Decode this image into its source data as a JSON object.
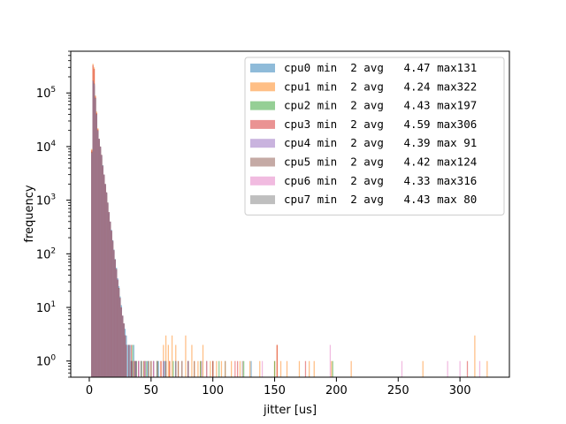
{
  "chart_data": {
    "type": "bar",
    "title": "",
    "xlabel": "jitter [us]",
    "ylabel": "frequency",
    "xlim": [
      -15,
      340
    ],
    "ylim": [
      0.5,
      600000
    ],
    "yscale": "log",
    "grid": false,
    "legend_position": "top-right",
    "xticks": [
      "0",
      "50",
      "100",
      "150",
      "200",
      "250",
      "300"
    ],
    "yticks": [
      {
        "value": 1,
        "base": "10",
        "exp": "0"
      },
      {
        "value": 10,
        "base": "10",
        "exp": "1"
      },
      {
        "value": 100,
        "base": "10",
        "exp": "2"
      },
      {
        "value": 1000,
        "base": "10",
        "exp": "3"
      },
      {
        "value": 10000,
        "base": "10",
        "exp": "4"
      },
      {
        "value": 100000,
        "base": "10",
        "exp": "5"
      }
    ],
    "series": [
      {
        "name": "cpu0 min  2 avg   4.47 max131",
        "color": "#1f77b4",
        "x": [
          2,
          3,
          4,
          5,
          6,
          7,
          8,
          9,
          10,
          11,
          12,
          13,
          14,
          15,
          16,
          17,
          18,
          19,
          20,
          21,
          22,
          23,
          24,
          25,
          26,
          27,
          28,
          29,
          30,
          31,
          32,
          33,
          34,
          35,
          36,
          37,
          38,
          40,
          42,
          44,
          47,
          52,
          56,
          61,
          70,
          80,
          95,
          110,
          131
        ],
        "y": [
          8000,
          160000,
          140000,
          80000,
          40000,
          20000,
          14000,
          10000,
          7000,
          4500,
          3000,
          2000,
          1400,
          900,
          600,
          400,
          280,
          180,
          120,
          80,
          55,
          35,
          25,
          16,
          11,
          7,
          5,
          4,
          3,
          2,
          2,
          2,
          1,
          1,
          2,
          1,
          1,
          1,
          1,
          1,
          1,
          1,
          1,
          1,
          1,
          1,
          1,
          1,
          1
        ]
      },
      {
        "name": "cpu1 min  2 avg   4.24 max322",
        "color": "#ff7f0e",
        "x": [
          2,
          3,
          4,
          5,
          6,
          7,
          8,
          9,
          10,
          11,
          12,
          13,
          14,
          15,
          16,
          17,
          18,
          19,
          20,
          21,
          22,
          23,
          24,
          25,
          26,
          27,
          28,
          29,
          30,
          32,
          34,
          36,
          40,
          44,
          48,
          52,
          55,
          58,
          60,
          62,
          64,
          65,
          67,
          70,
          72,
          75,
          78,
          80,
          83,
          85,
          88,
          90,
          92,
          95,
          98,
          100,
          103,
          107,
          110,
          115,
          118,
          122,
          130,
          138,
          150,
          152,
          155,
          160,
          170,
          178,
          182,
          196,
          212,
          270,
          312,
          322
        ],
        "y": [
          9000,
          350000,
          300000,
          90000,
          45000,
          22000,
          13000,
          9000,
          6000,
          4000,
          2800,
          1800,
          1200,
          800,
          500,
          350,
          220,
          140,
          90,
          60,
          40,
          25,
          18,
          12,
          8,
          6,
          4,
          3,
          2,
          2,
          1,
          1,
          1,
          1,
          1,
          1,
          1,
          1,
          2,
          3,
          2,
          1,
          3,
          2,
          1,
          1,
          3,
          1,
          2,
          1,
          1,
          1,
          2,
          1,
          1,
          1,
          1,
          1,
          1,
          1,
          1,
          1,
          1,
          1,
          1,
          2,
          1,
          1,
          1,
          1,
          1,
          1,
          1,
          1,
          3,
          1
        ]
      },
      {
        "name": "cpu2 min  2 avg   4.43 max197",
        "color": "#2ca02c",
        "x": [
          2,
          3,
          4,
          5,
          6,
          7,
          8,
          9,
          10,
          11,
          12,
          13,
          14,
          15,
          16,
          17,
          18,
          19,
          20,
          21,
          22,
          23,
          24,
          25,
          26,
          27,
          28,
          29,
          30,
          32,
          35,
          38,
          42,
          46,
          50,
          55,
          60,
          68,
          75,
          90,
          105,
          125,
          150,
          197
        ],
        "y": [
          7000,
          150000,
          130000,
          75000,
          38000,
          19000,
          13000,
          9500,
          6500,
          4200,
          2900,
          1900,
          1300,
          850,
          560,
          380,
          260,
          170,
          110,
          75,
          50,
          32,
          22,
          15,
          10,
          7,
          5,
          3,
          2,
          2,
          2,
          1,
          1,
          1,
          1,
          1,
          1,
          1,
          1,
          1,
          1,
          1,
          1,
          1
        ]
      },
      {
        "name": "cpu3 min  2 avg   4.59 max306",
        "color": "#d62728",
        "x": [
          2,
          3,
          4,
          5,
          6,
          7,
          8,
          9,
          10,
          11,
          12,
          13,
          14,
          15,
          16,
          17,
          18,
          19,
          20,
          21,
          22,
          23,
          24,
          25,
          26,
          27,
          28,
          29,
          30,
          32,
          34,
          37,
          40,
          45,
          50,
          58,
          65,
          80,
          100,
          120,
          152,
          175,
          306
        ],
        "y": [
          8500,
          330000,
          280000,
          85000,
          42000,
          21000,
          14000,
          10000,
          7000,
          4400,
          3000,
          2000,
          1400,
          900,
          600,
          400,
          270,
          170,
          115,
          78,
          52,
          33,
          23,
          15,
          10,
          7,
          5,
          3,
          2,
          2,
          2,
          1,
          1,
          1,
          1,
          1,
          1,
          1,
          1,
          1,
          2,
          1,
          1
        ]
      },
      {
        "name": "cpu4 min  2 avg   4.39 max 91",
        "color": "#9467bd",
        "x": [
          2,
          3,
          4,
          5,
          6,
          7,
          8,
          9,
          10,
          11,
          12,
          13,
          14,
          15,
          16,
          17,
          18,
          19,
          20,
          21,
          22,
          23,
          24,
          25,
          26,
          27,
          28,
          29,
          30,
          32,
          34,
          37,
          40,
          45,
          52,
          60,
          70,
          80,
          91
        ],
        "y": [
          7500,
          160000,
          140000,
          78000,
          39000,
          19500,
          13500,
          9800,
          6800,
          4300,
          2950,
          1950,
          1350,
          880,
          580,
          390,
          265,
          175,
          115,
          76,
          51,
          33,
          22,
          15,
          10,
          7,
          5,
          3,
          2,
          2,
          1,
          1,
          1,
          1,
          1,
          1,
          1,
          1,
          1
        ]
      },
      {
        "name": "cpu5 min  2 avg   4.42 max124",
        "color": "#8c564b",
        "x": [
          2,
          3,
          4,
          5,
          6,
          7,
          8,
          9,
          10,
          11,
          12,
          13,
          14,
          15,
          16,
          17,
          18,
          19,
          20,
          21,
          22,
          23,
          24,
          25,
          26,
          27,
          28,
          29,
          30,
          32,
          34,
          38,
          42,
          48,
          55,
          62,
          72,
          85,
          100,
          124
        ],
        "y": [
          7800,
          170000,
          150000,
          80000,
          40000,
          20000,
          13800,
          10000,
          6900,
          4400,
          3000,
          2000,
          1380,
          900,
          590,
          395,
          268,
          176,
          117,
          78,
          52,
          33,
          23,
          15,
          10,
          7,
          5,
          3,
          2,
          2,
          1,
          1,
          1,
          1,
          1,
          1,
          1,
          1,
          1,
          1
        ]
      },
      {
        "name": "cpu6 min  2 avg   4.33 max316",
        "color": "#e377c2",
        "x": [
          2,
          3,
          4,
          5,
          6,
          7,
          8,
          9,
          10,
          11,
          12,
          13,
          14,
          15,
          16,
          17,
          18,
          19,
          20,
          21,
          22,
          23,
          24,
          25,
          26,
          27,
          28,
          29,
          30,
          32,
          35,
          40,
          45,
          52,
          60,
          75,
          95,
          118,
          140,
          195,
          253,
          290,
          300,
          316
        ],
        "y": [
          7600,
          165000,
          145000,
          79000,
          39500,
          19800,
          13700,
          9900,
          6850,
          4350,
          2980,
          1980,
          1370,
          890,
          585,
          392,
          266,
          175,
          116,
          77,
          51,
          33,
          22,
          15,
          10,
          7,
          5,
          3,
          2,
          2,
          1,
          1,
          1,
          1,
          1,
          1,
          1,
          1,
          1,
          2,
          1,
          1,
          1,
          1
        ]
      },
      {
        "name": "cpu7 min  2 avg   4.43 max 80",
        "color": "#7f7f7f",
        "x": [
          2,
          3,
          4,
          5,
          6,
          7,
          8,
          9,
          10,
          11,
          12,
          13,
          14,
          15,
          16,
          17,
          18,
          19,
          20,
          21,
          22,
          23,
          24,
          25,
          26,
          27,
          28,
          29,
          30,
          32,
          35,
          38,
          42,
          48,
          55,
          62,
          70,
          80
        ],
        "y": [
          7700,
          168000,
          148000,
          80000,
          40000,
          20000,
          13800,
          10000,
          6900,
          4400,
          3000,
          2000,
          1380,
          900,
          590,
          395,
          268,
          176,
          117,
          78,
          52,
          33,
          23,
          15,
          10,
          7,
          5,
          3,
          2,
          2,
          1,
          1,
          1,
          1,
          1,
          1,
          1,
          1
        ]
      }
    ]
  }
}
